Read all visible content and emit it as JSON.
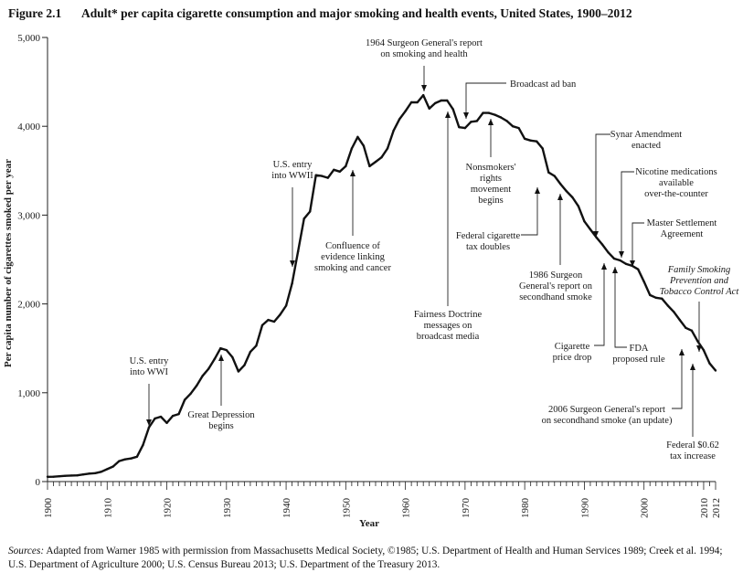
{
  "header": {
    "figure_number": "Figure 2.1",
    "title": "Adult* per capita cigarette consumption and major smoking and health events, United States, 1900–2012"
  },
  "sources": {
    "label": "Sources:",
    "text": "Adapted from Warner 1985 with permission from Massachusetts Medical Society, ©1985; U.S. Department of Health and Human Services 1989; Creek et al. 1994; U.S. Department of Agriculture 2000; U.S. Census Bureau 2013; U.S. Department of the Treasury 2013."
  },
  "chart_data": {
    "type": "line",
    "title": "Adult* per capita cigarette consumption and major smoking and health events, United States, 1900–2012",
    "xlabel": "Year",
    "ylabel": "Per capita number of cigarettes smoked per year",
    "xlim": [
      1900,
      2012
    ],
    "ylim": [
      0,
      5000
    ],
    "x_tick_labels": [
      "1900",
      "1910",
      "1920",
      "1930",
      "1940",
      "1950",
      "1960",
      "1970",
      "1980",
      "1990",
      "2000",
      "2010",
      "2012"
    ],
    "y_tick_labels": [
      "0",
      "1,000",
      "2,000",
      "3,000",
      "4,000",
      "5,000"
    ],
    "grid": false,
    "series": [
      {
        "x": [
          1900,
          1901,
          1902,
          1903,
          1904,
          1905,
          1906,
          1907,
          1908,
          1909,
          1910,
          1911,
          1912,
          1913,
          1914,
          1915,
          1916,
          1917,
          1918,
          1919,
          1920,
          1921,
          1922,
          1923,
          1924,
          1925,
          1926,
          1927,
          1928,
          1929,
          1930,
          1931,
          1932,
          1933,
          1934,
          1935,
          1936,
          1937,
          1938,
          1939,
          1940,
          1941,
          1942,
          1943,
          1944,
          1945,
          1946,
          1947,
          1948,
          1949,
          1950,
          1951,
          1952,
          1953,
          1954,
          1955,
          1956,
          1957,
          1958,
          1959,
          1960,
          1961,
          1962,
          1963,
          1964,
          1965,
          1966,
          1967,
          1968,
          1969,
          1970,
          1971,
          1972,
          1973,
          1974,
          1975,
          1976,
          1977,
          1978,
          1979,
          1980,
          1981,
          1982,
          1983,
          1984,
          1985,
          1986,
          1987,
          1988,
          1989,
          1990,
          1991,
          1992,
          1993,
          1994,
          1995,
          1996,
          1997,
          1998,
          1999,
          2000,
          2001,
          2002,
          2003,
          2004,
          2005,
          2006,
          2007,
          2008,
          2009,
          2010,
          2011,
          2012
        ],
        "y": [
          54,
          55,
          60,
          65,
          68,
          70,
          80,
          90,
          95,
          110,
          140,
          170,
          230,
          250,
          260,
          280,
          410,
          610,
          710,
          730,
          660,
          740,
          760,
          920,
          990,
          1080,
          1190,
          1270,
          1380,
          1500,
          1480,
          1400,
          1240,
          1310,
          1460,
          1530,
          1760,
          1820,
          1800,
          1880,
          1980,
          2230,
          2590,
          2960,
          3040,
          3450,
          3440,
          3420,
          3510,
          3490,
          3550,
          3750,
          3880,
          3780,
          3550,
          3600,
          3650,
          3750,
          3950,
          4080,
          4170,
          4270,
          4270,
          4350,
          4200,
          4260,
          4290,
          4290,
          4190,
          3990,
          3980,
          4050,
          4060,
          4150,
          4150,
          4130,
          4100,
          4060,
          4000,
          3980,
          3860,
          3840,
          3830,
          3750,
          3480,
          3440,
          3350,
          3270,
          3200,
          3100,
          2930,
          2840,
          2750,
          2670,
          2580,
          2510,
          2490,
          2450,
          2430,
          2390,
          2250,
          2100,
          2070,
          2060,
          1980,
          1910,
          1820,
          1730,
          1700,
          1580,
          1480,
          1330,
          1250
        ]
      }
    ],
    "annotations": [
      {
        "lines": [
          "U.S. entry",
          "into WWI"
        ],
        "year": 1917
      },
      {
        "lines": [
          "Great Depression",
          "begins"
        ],
        "year": 1929
      },
      {
        "lines": [
          "U.S. entry",
          "into WWII"
        ],
        "year": 1941
      },
      {
        "lines": [
          "Confluence of",
          "evidence linking",
          "smoking and cancer"
        ],
        "year": 1953
      },
      {
        "lines": [
          "1964 Surgeon General's report",
          "on smoking and health"
        ],
        "year": 1964
      },
      {
        "lines": [
          "Fairness Doctrine",
          "messages on",
          "broadcast media"
        ],
        "year": 1967
      },
      {
        "lines": [
          "Broadcast ad ban"
        ],
        "year": 1971
      },
      {
        "lines": [
          "Nonsmokers'",
          "rights",
          "movement",
          "begins"
        ],
        "year": 1974
      },
      {
        "lines": [
          "Federal cigarette",
          "tax doubles"
        ],
        "year": 1983
      },
      {
        "lines": [
          "1986 Surgeon",
          "General's report on",
          "secondhand smoke"
        ],
        "year": 1986
      },
      {
        "lines": [
          "Synar Amendment",
          "enacted"
        ],
        "year": 1992
      },
      {
        "lines": [
          "Cigarette",
          "price drop"
        ],
        "year": 1993
      },
      {
        "lines": [
          "FDA",
          "proposed rule"
        ],
        "year": 1995
      },
      {
        "lines": [
          "Nicotine medications",
          "available",
          "over-the-counter"
        ],
        "year": 1996
      },
      {
        "lines": [
          "Master Settlement",
          "Agreement"
        ],
        "year": 1998
      },
      {
        "lines": [
          "2006 Surgeon General's report",
          "on secondhand smoke (an update)"
        ],
        "year": 2006
      },
      {
        "lines": [
          "Federal $0.62",
          "tax increase"
        ],
        "year": 2009
      },
      {
        "lines": [
          "Family Smoking",
          "Prevention and",
          "Tobacco Control Act"
        ],
        "year": 2009,
        "italic": true
      }
    ]
  }
}
